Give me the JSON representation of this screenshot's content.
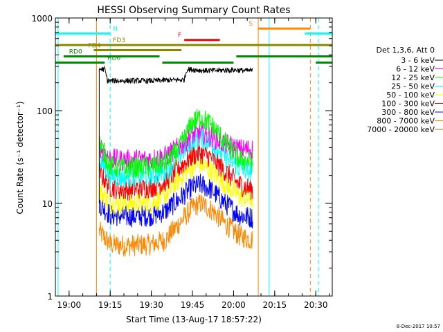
{
  "chart_data": {
    "type": "line",
    "title": "HESSI Observing Summary Count Rates",
    "xlabel": "Start Time (13-Aug-17 18:57:22)",
    "ylabel": "Count Rate (s⁻¹ detector⁻¹)",
    "yscale": "log",
    "ylim": [
      1,
      1000
    ],
    "xlim": [
      "18:55",
      "20:36"
    ],
    "x_ticks": [
      "19:00",
      "19:15",
      "19:30",
      "19:45",
      "20:00",
      "20:15",
      "20:30"
    ],
    "y_ticks": [
      "1",
      "10",
      "100",
      "1000"
    ],
    "legend_title": "Det 1,3,6, Att 0",
    "legend_position": "right",
    "date_stamp": "8-Dec-2017 10:57",
    "coverage": {
      "start": "19:11",
      "end": "20:08"
    },
    "series": [
      {
        "name": "3 - 6 keV",
        "color": "#000000",
        "x": [
          "19:11",
          "19:13",
          "19:14",
          "19:20",
          "19:30",
          "19:40",
          "19:42",
          "19:43",
          "19:50",
          "20:00",
          "20:05",
          "20:07"
        ],
        "values": [
          280,
          280,
          210,
          210,
          210,
          215,
          215,
          280,
          270,
          275,
          270,
          270
        ]
      },
      {
        "name": "6 - 12 keV",
        "color": "#ff00ff",
        "x": [
          "19:11",
          "19:15",
          "19:20",
          "19:30",
          "19:35",
          "19:40",
          "19:45",
          "19:48",
          "19:52",
          "19:57",
          "20:02",
          "20:07"
        ],
        "values": [
          42,
          30,
          29,
          30,
          32,
          40,
          55,
          58,
          52,
          44,
          38,
          38
        ]
      },
      {
        "name": "12 - 25 keV",
        "color": "#00ff00",
        "x": [
          "19:11",
          "19:15",
          "19:20",
          "19:30",
          "19:35",
          "19:40",
          "19:45",
          "19:48",
          "19:52",
          "19:57",
          "20:02",
          "20:07"
        ],
        "values": [
          45,
          25,
          24,
          25,
          27,
          38,
          75,
          85,
          70,
          45,
          30,
          28
        ]
      },
      {
        "name": "25 - 50 keV",
        "color": "#00ffff",
        "x": [
          "19:11",
          "19:15",
          "19:20",
          "19:30",
          "19:35",
          "19:40",
          "19:45",
          "19:48",
          "19:52",
          "19:57",
          "20:02",
          "20:07"
        ],
        "values": [
          30,
          20,
          19,
          20,
          22,
          32,
          48,
          52,
          45,
          32,
          24,
          22
        ]
      },
      {
        "name": "50 - 100 keV",
        "color": "#ffff00",
        "x": [
          "19:11",
          "19:15",
          "19:20",
          "19:30",
          "19:35",
          "19:40",
          "19:45",
          "19:48",
          "19:52",
          "19:57",
          "20:02",
          "20:07"
        ],
        "values": [
          14,
          10,
          10,
          10,
          12,
          18,
          25,
          27,
          22,
          16,
          12,
          11
        ]
      },
      {
        "name": "100 - 300 keV",
        "color": "#ff0000",
        "x": [
          "19:11",
          "19:15",
          "19:20",
          "19:30",
          "19:35",
          "19:40",
          "19:45",
          "19:48",
          "19:52",
          "19:57",
          "20:02",
          "20:07"
        ],
        "values": [
          22,
          15,
          14,
          15,
          17,
          24,
          33,
          35,
          31,
          22,
          16,
          14
        ]
      },
      {
        "name": "300 - 800 keV",
        "color": "#0000ff",
        "x": [
          "19:11",
          "19:15",
          "19:20",
          "19:30",
          "19:35",
          "19:40",
          "19:45",
          "19:48",
          "19:52",
          "19:57",
          "20:02",
          "20:07"
        ],
        "values": [
          10,
          7.5,
          7.2,
          7.4,
          8.2,
          11,
          15,
          16,
          14,
          10,
          7.5,
          7
        ]
      },
      {
        "name": "800 - 7000 keV",
        "color": "#ff8800",
        "x": [
          "19:11",
          "19:15",
          "19:20",
          "19:30",
          "19:35",
          "19:40",
          "19:45",
          "19:48",
          "19:52",
          "19:57",
          "20:02",
          "20:07"
        ],
        "values": [
          5,
          3.6,
          3.5,
          3.6,
          4,
          6,
          9,
          10,
          8.5,
          6,
          4.5,
          4
        ]
      },
      {
        "name": "7000 - 20000 keV",
        "color": "#888800",
        "x": [],
        "values": []
      }
    ],
    "flags": [
      {
        "label": "N",
        "color": "#00ffff",
        "y": 680,
        "start": "18:55",
        "end": "19:15",
        "label_at": "19:16"
      },
      {
        "label": "N",
        "color": "#00ffff",
        "y": 680,
        "start": "20:26",
        "end": "20:36"
      },
      {
        "label": "S",
        "color": "#ff8800",
        "y": 770,
        "start": "20:09",
        "end": "20:28",
        "label_at": "20:07"
      },
      {
        "label": "F",
        "color": "#ff0000",
        "y": 580,
        "start": "19:42",
        "end": "19:55",
        "label_at": "19:41"
      },
      {
        "label": "FD3",
        "color": "#888800",
        "y": 510,
        "start": "18:55",
        "end": "20:36",
        "label_at": "19:16"
      },
      {
        "label": "FD4",
        "color": "#888800",
        "y": 450,
        "start": "19:09",
        "end": "19:41",
        "label_at": "19:07"
      },
      {
        "label": "RD0",
        "color": "#008800",
        "y": 385,
        "start": "18:58",
        "end": "19:33",
        "label_at": "19:00"
      },
      {
        "label": "RD0",
        "color": "#008800",
        "y": 385,
        "start": "20:01",
        "end": "20:36"
      },
      {
        "label": "RD6",
        "color": "#008800",
        "y": 330,
        "start": "18:55",
        "end": "19:13",
        "label_at": "19:14"
      },
      {
        "label": "RD6",
        "color": "#008800",
        "y": 330,
        "start": "19:34",
        "end": "20:00"
      },
      {
        "label": "RD6",
        "color": "#008800",
        "y": 330,
        "start": "20:30",
        "end": "20:36"
      }
    ],
    "vlines": [
      {
        "x": "18:56",
        "color": "#00ffff",
        "style": "solid"
      },
      {
        "x": "19:15",
        "color": "#00ffff",
        "style": "dashed"
      },
      {
        "x": "19:10",
        "color": "#ff8800",
        "style": "solid"
      },
      {
        "x": "20:09",
        "color": "#ff8800",
        "style": "solid"
      },
      {
        "x": "20:13",
        "color": "#00ffff",
        "style": "solid"
      },
      {
        "x": "20:28",
        "color": "#ff8800",
        "style": "dashed"
      },
      {
        "x": "20:31",
        "color": "#00ffff",
        "style": "dashed"
      }
    ]
  }
}
